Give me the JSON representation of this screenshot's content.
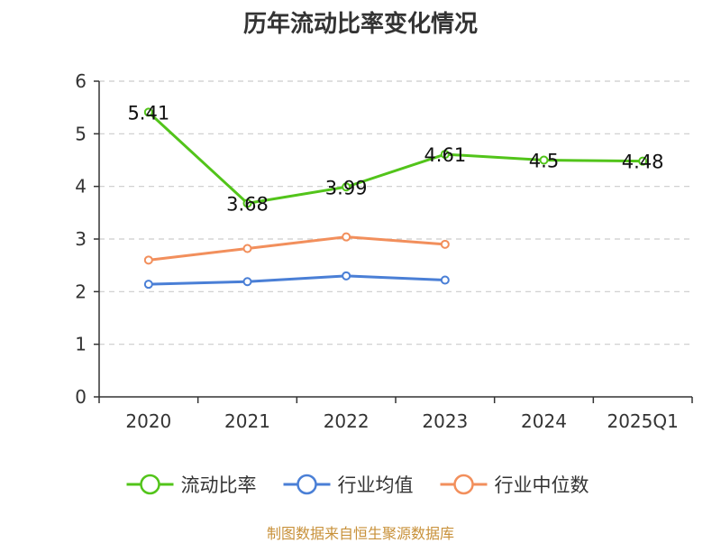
{
  "title": "历年流动比率变化情况",
  "source": "制图数据来自恒生聚源数据库",
  "chart_data": {
    "type": "line",
    "title": "历年流动比率变化情况",
    "categories": [
      "2020",
      "2021",
      "2022",
      "2023",
      "2024",
      "2025Q1"
    ],
    "ylim": [
      0,
      6
    ],
    "yticks": [
      0,
      1,
      2,
      3,
      4,
      5,
      6
    ],
    "grid": true,
    "legend_position": "bottom",
    "series": [
      {
        "name": "流动比率",
        "color": "#52c41a",
        "values": [
          5.41,
          3.68,
          3.99,
          4.61,
          4.5,
          4.48
        ],
        "show_labels": true
      },
      {
        "name": "行业均值",
        "color": "#4a7fd6",
        "values": [
          2.14,
          2.19,
          2.3,
          2.22,
          null,
          null
        ],
        "show_labels": false
      },
      {
        "name": "行业中位数",
        "color": "#f28f5c",
        "values": [
          2.6,
          2.82,
          3.04,
          2.9,
          null,
          null
        ],
        "show_labels": false
      }
    ]
  }
}
